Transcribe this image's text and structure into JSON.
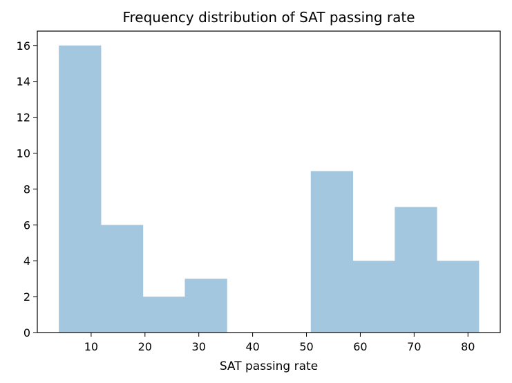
{
  "chart_data": {
    "type": "bar",
    "title": "Frequency distribution of SAT passing rate",
    "xlabel": "SAT passing rate",
    "ylabel": "",
    "bins": [
      {
        "x0": 4.0,
        "x1": 11.8,
        "count": 16
      },
      {
        "x0": 11.8,
        "x1": 19.6,
        "count": 6
      },
      {
        "x0": 19.6,
        "x1": 27.4,
        "count": 2
      },
      {
        "x0": 27.4,
        "x1": 35.2,
        "count": 3
      },
      {
        "x0": 35.2,
        "x1": 43.0,
        "count": 0
      },
      {
        "x0": 43.0,
        "x1": 50.8,
        "count": 0
      },
      {
        "x0": 50.8,
        "x1": 58.6,
        "count": 9
      },
      {
        "x0": 58.6,
        "x1": 66.4,
        "count": 4
      },
      {
        "x0": 66.4,
        "x1": 74.2,
        "count": 7
      },
      {
        "x0": 74.2,
        "x1": 82.0,
        "count": 4
      }
    ],
    "xlim": [
      -0.0,
      86.0
    ],
    "ylim": [
      0,
      16.8
    ],
    "xticks": [
      10,
      20,
      30,
      40,
      50,
      60,
      70,
      80
    ],
    "yticks": [
      0,
      2,
      4,
      6,
      8,
      10,
      12,
      14,
      16
    ],
    "bar_color": "#a4c7e0",
    "grid": false,
    "legend": "none"
  }
}
